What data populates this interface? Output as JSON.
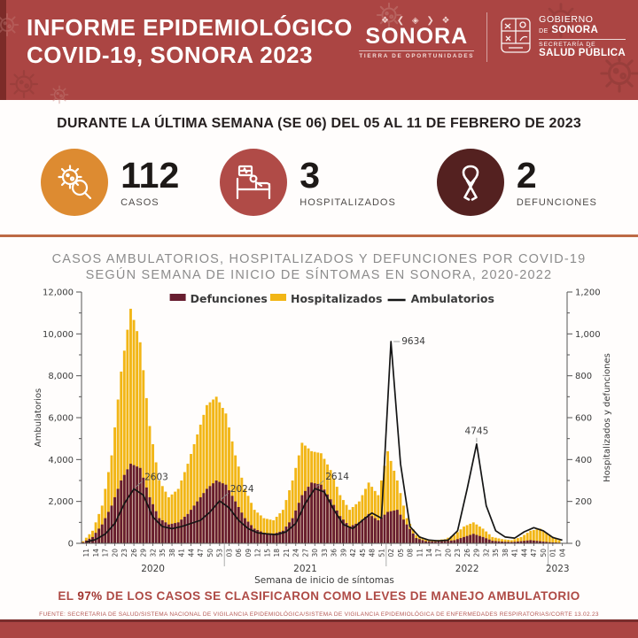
{
  "header": {
    "title_line1": "INFORME EPIDEMIOLÓGICO",
    "title_line2": "COVID-19, SONORA 2023",
    "sonora_logo": {
      "ornament": "❖ ❮ ◈ ❯ ❖",
      "name": "SONORA",
      "tagline": "TIERRA DE OPORTUNIDADES"
    },
    "gov_logo": {
      "line1": "GOBIERNO",
      "line2_small": "DE",
      "line2": "SONORA",
      "line3": "SECRETARÍA DE",
      "line4": "SALUD PÚBLICA"
    }
  },
  "subtitle": "DURANTE LA ÚLTIMA SEMANA (SE 06) DEL 05 AL 11 DE FEBRERO DE 2023",
  "stats": [
    {
      "icon": "virus-search-icon",
      "circle_color": "#dd8b31",
      "value": "112",
      "label": "CASOS"
    },
    {
      "icon": "hospital-bed-icon",
      "circle_color": "#b04b47",
      "value": "3",
      "label": "HOSPITALIZADOS"
    },
    {
      "icon": "awareness-ribbon-icon",
      "circle_color": "#542120",
      "value": "2",
      "label": "DEFUNCIONES"
    }
  ],
  "chart_heading": {
    "line1": "CASOS AMBULATORIOS, HOSPITALIZADOS Y DEFUNCIONES POR COVID-19",
    "line2": "SEGÚN SEMANA DE INICIO DE SÍNTOMAS EN SONORA, 2020-2022"
  },
  "chart_data": {
    "type": "bar",
    "subtype": "combo-bar-line-dual-axis",
    "title": "CASOS AMBULATORIOS, HOSPITALIZADOS Y DEFUNCIONES POR COVID-19 SEGÚN SEMANA DE INICIO DE SÍNTOMAS EN SONORA, 2020-2022",
    "xlabel": "Semana de inicio de síntomas",
    "ylabel_left": "Ambulatorios",
    "ylabel_right": "Hospitalizados y defunciones",
    "ylim_left": [
      0,
      12000
    ],
    "ylim_right": [
      0,
      1200
    ],
    "yticks_left": [
      "0",
      "2,000",
      "4,000",
      "6,000",
      "8,000",
      "10,000",
      "12,000"
    ],
    "yticks_right": [
      "0",
      "200",
      "400",
      "600",
      "800",
      "1,000",
      "1,200"
    ],
    "grid": false,
    "legend_position": "top-center",
    "categories": [
      "11",
      "14",
      "17",
      "20",
      "23",
      "26",
      "29",
      "32",
      "35",
      "38",
      "41",
      "44",
      "47",
      "50",
      "53",
      "03",
      "06",
      "09",
      "12",
      "15",
      "18",
      "21",
      "24",
      "27",
      "30",
      "33",
      "36",
      "39",
      "42",
      "45",
      "48",
      "51",
      "02",
      "05",
      "08",
      "11",
      "14",
      "17",
      "20",
      "23",
      "26",
      "29",
      "32",
      "35",
      "38",
      "41",
      "44",
      "47",
      "50",
      "01",
      "04"
    ],
    "year_groups": [
      {
        "label": "2020",
        "from": 0,
        "to": 14
      },
      {
        "label": "2021",
        "from": 15,
        "to": 31
      },
      {
        "label": "2022",
        "from": 32,
        "to": 48
      },
      {
        "label": "2023",
        "from": 49,
        "to": 50
      }
    ],
    "series": [
      {
        "name": "Defunciones",
        "type": "bar",
        "axis": "right",
        "color": "#671d2f",
        "values": [
          5,
          30,
          90,
          180,
          300,
          380,
          360,
          220,
          120,
          90,
          100,
          140,
          200,
          260,
          300,
          280,
          200,
          120,
          70,
          50,
          45,
          60,
          120,
          230,
          290,
          280,
          210,
          130,
          80,
          100,
          140,
          110,
          150,
          160,
          90,
          25,
          10,
          8,
          10,
          15,
          30,
          45,
          30,
          12,
          8,
          6,
          10,
          15,
          10,
          5,
          3
        ]
      },
      {
        "name": "Hospitalizados",
        "type": "bar",
        "axis": "right",
        "color": "#f2b616",
        "values": [
          10,
          60,
          180,
          420,
          820,
          1120,
          960,
          560,
          300,
          220,
          260,
          380,
          520,
          660,
          700,
          620,
          420,
          260,
          160,
          120,
          110,
          160,
          300,
          480,
          440,
          430,
          350,
          230,
          160,
          200,
          290,
          230,
          440,
          300,
          120,
          40,
          20,
          15,
          20,
          40,
          80,
          100,
          70,
          30,
          20,
          15,
          30,
          60,
          70,
          40,
          15
        ]
      },
      {
        "name": "Ambulatorios",
        "type": "line",
        "axis": "left",
        "color": "#151515",
        "values": [
          60,
          180,
          450,
          950,
          1900,
          2603,
          2300,
          1250,
          800,
          700,
          800,
          950,
          1100,
          1500,
          2024,
          1700,
          1100,
          700,
          500,
          450,
          420,
          550,
          950,
          1900,
          2614,
          2450,
          1600,
          900,
          700,
          1100,
          1450,
          1200,
          9634,
          3800,
          800,
          300,
          150,
          120,
          150,
          600,
          2600,
          4745,
          1800,
          600,
          300,
          250,
          550,
          750,
          600,
          280,
          150
        ]
      }
    ],
    "annotations": [
      {
        "label": "2603",
        "index": 5,
        "series": "Ambulatorios",
        "placement": "right-up"
      },
      {
        "label": "2024",
        "index": 14,
        "series": "Ambulatorios",
        "placement": "right-up"
      },
      {
        "label": "2614",
        "index": 24,
        "series": "Ambulatorios",
        "placement": "right-up"
      },
      {
        "label": "9634",
        "index": 32,
        "series": "Ambulatorios",
        "placement": "right"
      },
      {
        "label": "4745",
        "index": 41,
        "series": "Ambulatorios",
        "placement": "above"
      }
    ]
  },
  "footnote": {
    "prefix": "EL ",
    "highlight": "97%",
    "suffix": " DE LOS CASOS SE CLASIFICARON COMO LEVES DE MANEJO AMBULATORIO"
  },
  "source": "FUENTE: SECRETARIA DE SALUD/SISTEMA NACIONAL DE VIGILANCIA EPIDEMIOLÓGICA/SISTEMA DE VIGILANCIA EPIDEMIOLÓGICA DE ENFERMEDADES RESPIRATORIAS/CORTE 13.02.23",
  "colors": {
    "header_bg": "#ab4543",
    "header_edge": "#7c2b28",
    "section_divider": "#bd6a45",
    "stat_casos_circle": "#dd8b31",
    "stat_hosp_circle": "#b04b47",
    "stat_def_circle": "#542120",
    "bar_defunciones": "#671d2f",
    "bar_hospitalizados": "#f2b616",
    "line_ambulatorios": "#151515",
    "footnote_red": "#ae4a45"
  }
}
